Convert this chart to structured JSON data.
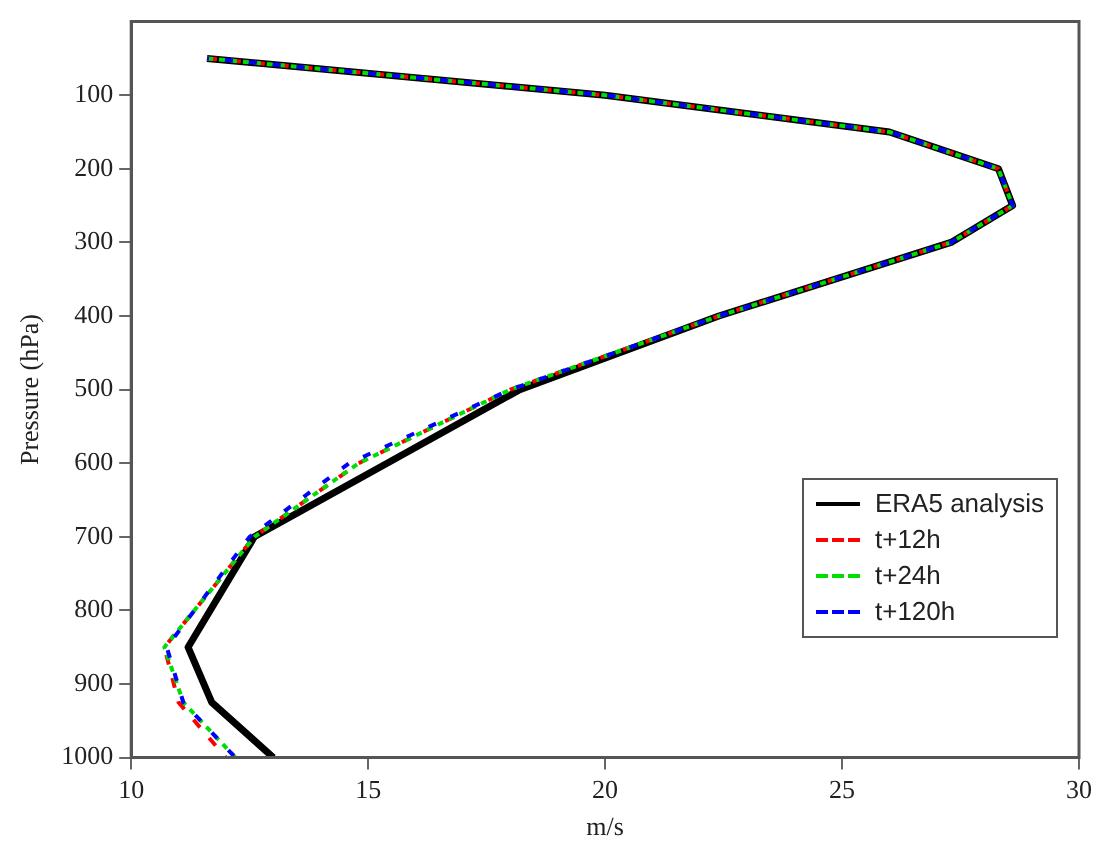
{
  "chart_data": {
    "type": "line",
    "xlabel": "m/s",
    "ylabel": "Pressure (hPa)",
    "xlim": [
      10,
      30
    ],
    "xticks": [
      10,
      15,
      20,
      25,
      30
    ],
    "ylim": [
      1000,
      0
    ],
    "yticks": [
      100,
      200,
      300,
      400,
      500,
      600,
      700,
      800,
      900,
      1000
    ],
    "legend": "bottom right",
    "marker": "none",
    "series": [
      {
        "name": "ERA5 analysis",
        "color": "#000000",
        "line_style": "solid",
        "x": [
          11.6,
          20.0,
          26.0,
          28.3,
          28.6,
          27.3,
          22.4,
          18.2,
          15.4,
          12.6,
          11.2,
          11.7,
          13.0
        ],
        "values": [
          50,
          100,
          150,
          200,
          250,
          300,
          400,
          500,
          600,
          700,
          850,
          925,
          1000
        ]
      },
      {
        "name": "t+12h",
        "color": "#ff0000",
        "line_style": "dashed",
        "x": [
          11.6,
          20.0,
          26.0,
          28.3,
          28.6,
          27.3,
          22.4,
          18.0,
          14.8,
          12.6,
          10.7,
          11.0,
          12.0
        ],
        "values": [
          50,
          100,
          150,
          200,
          250,
          300,
          400,
          500,
          600,
          700,
          850,
          925,
          1000
        ]
      },
      {
        "name": "t+24h",
        "color": "#00dd00",
        "line_style": "dashed",
        "x": [
          11.6,
          20.0,
          26.0,
          28.3,
          28.6,
          27.3,
          22.4,
          18.0,
          14.8,
          12.6,
          10.7,
          11.1,
          12.2
        ],
        "values": [
          50,
          100,
          150,
          200,
          250,
          300,
          400,
          500,
          600,
          700,
          850,
          925,
          1000
        ]
      },
      {
        "name": "t+120h",
        "color": "#0000ff",
        "line_style": "dashed",
        "x": [
          11.6,
          20.0,
          26.0,
          28.3,
          28.6,
          27.3,
          22.4,
          18.0,
          14.6,
          12.5,
          10.75,
          11.1,
          12.2
        ],
        "values": [
          50,
          100,
          150,
          200,
          250,
          300,
          400,
          500,
          600,
          700,
          850,
          925,
          1000
        ]
      }
    ]
  }
}
